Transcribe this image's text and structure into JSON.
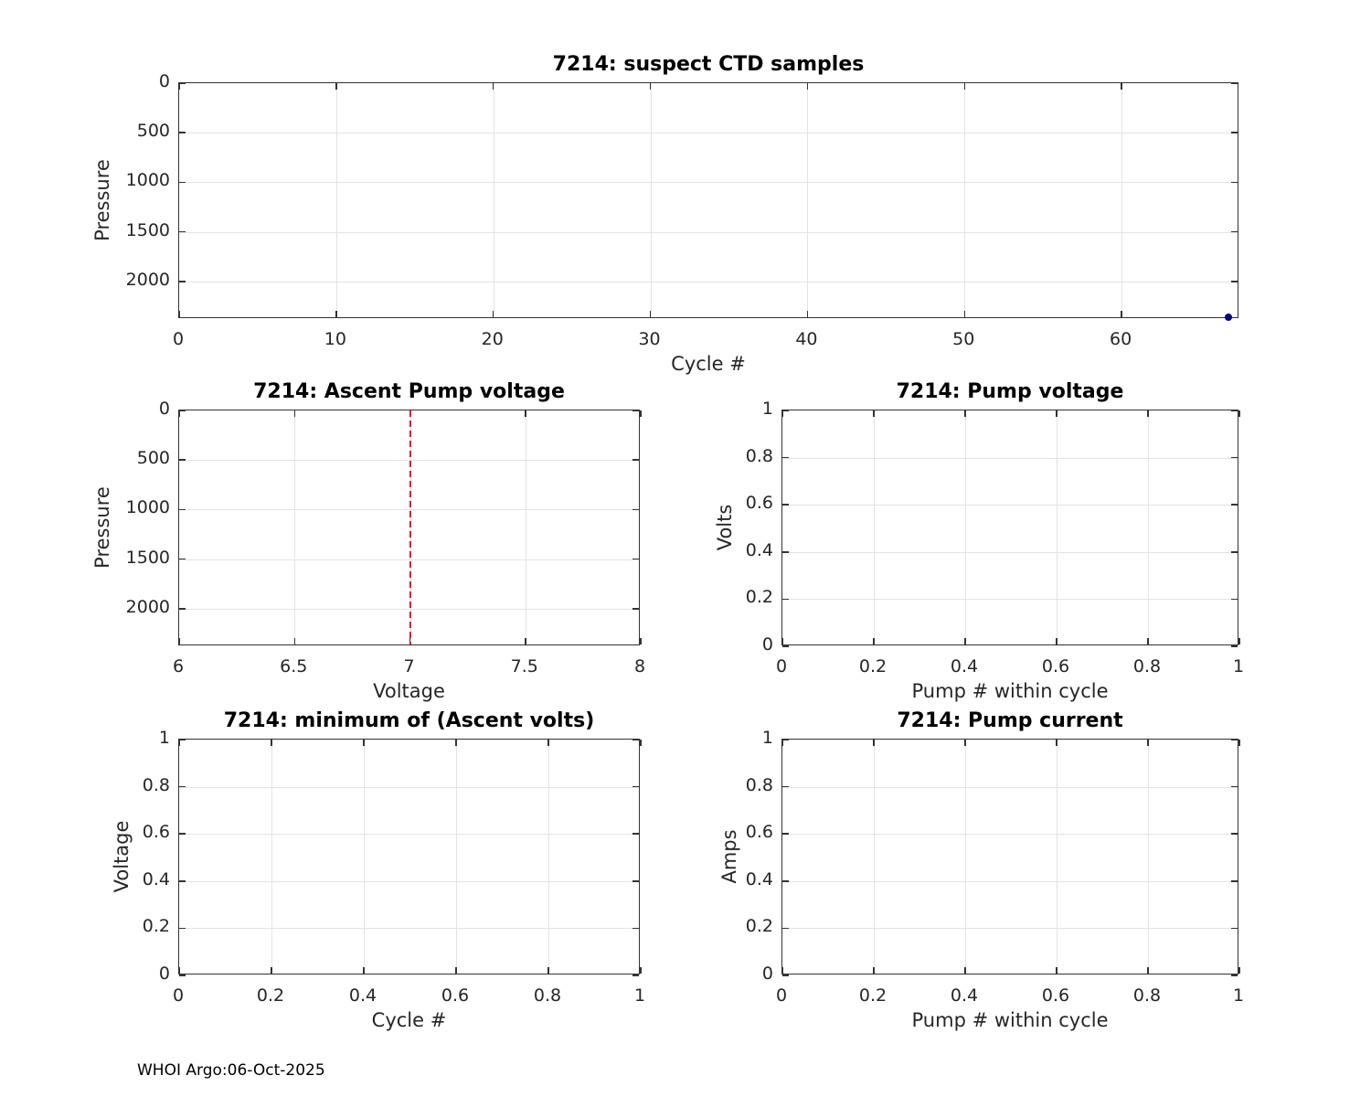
{
  "figure": {
    "footer": "WHOI Argo:06-Oct-2025"
  },
  "chart_data": [
    {
      "id": "suspect-ctd-samples",
      "type": "scatter",
      "title": "7214: suspect CTD samples",
      "xlabel": "Cycle #",
      "ylabel": "Pressure",
      "x_range": [
        0,
        67.5
      ],
      "y_range": [
        0,
        2380
      ],
      "y_reversed": true,
      "grid": true,
      "x_tick_values": [
        0,
        10,
        20,
        30,
        40,
        50,
        60
      ],
      "x_tick_labels": [
        "0",
        "10",
        "20",
        "30",
        "40",
        "50",
        "60"
      ],
      "y_tick_values": [
        0,
        500,
        1000,
        1500,
        2000
      ],
      "y_tick_labels": [
        "0",
        "500",
        "1000",
        "1500",
        "2000"
      ],
      "series": [
        {
          "name": "suspect-sample-point",
          "color": "#000080",
          "marker": "point",
          "points": [
            [
              66.8,
              2365
            ]
          ]
        }
      ],
      "vlines": []
    },
    {
      "id": "ascent-pump-voltage",
      "type": "scatter",
      "title": "7214: Ascent Pump voltage",
      "xlabel": "Voltage",
      "ylabel": "Pressure",
      "x_range": [
        6,
        8
      ],
      "y_range": [
        0,
        2380
      ],
      "y_reversed": true,
      "grid": true,
      "x_tick_values": [
        6,
        6.5,
        7,
        7.5,
        8
      ],
      "x_tick_labels": [
        "6",
        "6.5",
        "7",
        "7.5",
        "8"
      ],
      "y_tick_values": [
        0,
        500,
        1000,
        1500,
        2000
      ],
      "y_tick_labels": [
        "0",
        "500",
        "1000",
        "1500",
        "2000"
      ],
      "series": [],
      "vlines": [
        {
          "x": 7,
          "color": "#e8112e",
          "style": "dashed"
        }
      ]
    },
    {
      "id": "pump-voltage",
      "type": "scatter",
      "title": "7214: Pump voltage",
      "xlabel": "Pump # within cycle",
      "ylabel": "Volts",
      "x_range": [
        0,
        1
      ],
      "y_range": [
        0,
        1
      ],
      "y_reversed": false,
      "grid": true,
      "x_tick_values": [
        0,
        0.2,
        0.4,
        0.6,
        0.8,
        1
      ],
      "x_tick_labels": [
        "0",
        "0.2",
        "0.4",
        "0.6",
        "0.8",
        "1"
      ],
      "y_tick_values": [
        0,
        0.2,
        0.4,
        0.6,
        0.8,
        1
      ],
      "y_tick_labels": [
        "0",
        "0.2",
        "0.4",
        "0.6",
        "0.8",
        "1"
      ],
      "series": [],
      "vlines": []
    },
    {
      "id": "min-ascent-volts",
      "type": "scatter",
      "title": "7214: minimum of (Ascent volts)",
      "xlabel": "Cycle #",
      "ylabel": "Voltage",
      "x_range": [
        0,
        1
      ],
      "y_range": [
        0,
        1
      ],
      "y_reversed": false,
      "grid": true,
      "x_tick_values": [
        0,
        0.2,
        0.4,
        0.6,
        0.8,
        1
      ],
      "x_tick_labels": [
        "0",
        "0.2",
        "0.4",
        "0.6",
        "0.8",
        "1"
      ],
      "y_tick_values": [
        0,
        0.2,
        0.4,
        0.6,
        0.8,
        1
      ],
      "y_tick_labels": [
        "0",
        "0.2",
        "0.4",
        "0.6",
        "0.8",
        "1"
      ],
      "series": [],
      "vlines": []
    },
    {
      "id": "pump-current",
      "type": "scatter",
      "title": "7214: Pump current",
      "xlabel": "Pump # within cycle",
      "ylabel": "Amps",
      "x_range": [
        0,
        1
      ],
      "y_range": [
        0,
        1
      ],
      "y_reversed": false,
      "grid": true,
      "x_tick_values": [
        0,
        0.2,
        0.4,
        0.6,
        0.8,
        1
      ],
      "x_tick_labels": [
        "0",
        "0.2",
        "0.4",
        "0.6",
        "0.8",
        "1"
      ],
      "y_tick_values": [
        0,
        0.2,
        0.4,
        0.6,
        0.8,
        1
      ],
      "y_tick_labels": [
        "0",
        "0.2",
        "0.4",
        "0.6",
        "0.8",
        "1"
      ],
      "series": [],
      "vlines": []
    }
  ]
}
